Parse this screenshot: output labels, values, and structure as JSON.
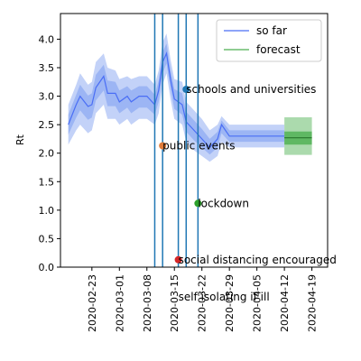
{
  "chart_data": {
    "type": "line",
    "title": "",
    "xlabel": "",
    "ylabel": "Rt",
    "ylim": [
      0,
      4.45
    ],
    "yticks": [
      "0.0",
      "0.5",
      "1.0",
      "1.5",
      "2.0",
      "2.5",
      "3.0",
      "3.5",
      "4.0"
    ],
    "xlim": [
      "2020-02-15",
      "2020-04-23"
    ],
    "xticks": [
      "2020-02-23",
      "2020-03-01",
      "2020-03-08",
      "2020-03-15",
      "2020-03-22",
      "2020-03-29",
      "2020-04-05",
      "2020-04-12",
      "2020-04-19"
    ],
    "grid": false,
    "legend_position": "top-right",
    "series": [
      {
        "name": "so far",
        "color": "#4a6ef5",
        "band_color": "#7b9cf0",
        "points": [
          {
            "x": "2020-02-17",
            "y": 2.5,
            "lo": 2.15,
            "hi": 2.85
          },
          {
            "x": "2020-02-19",
            "y": 2.85,
            "lo": 2.4,
            "hi": 3.2
          },
          {
            "x": "2020-02-20",
            "y": 3.0,
            "lo": 2.5,
            "hi": 3.4
          },
          {
            "x": "2020-02-22",
            "y": 2.82,
            "lo": 2.35,
            "hi": 3.2
          },
          {
            "x": "2020-02-23",
            "y": 2.85,
            "lo": 2.4,
            "hi": 3.25
          },
          {
            "x": "2020-02-24",
            "y": 3.15,
            "lo": 2.7,
            "hi": 3.6
          },
          {
            "x": "2020-02-26",
            "y": 3.35,
            "lo": 2.85,
            "hi": 3.75
          },
          {
            "x": "2020-02-27",
            "y": 3.05,
            "lo": 2.6,
            "hi": 3.5
          },
          {
            "x": "2020-02-29",
            "y": 3.05,
            "lo": 2.6,
            "hi": 3.45
          },
          {
            "x": "2020-03-01",
            "y": 2.9,
            "lo": 2.5,
            "hi": 3.3
          },
          {
            "x": "2020-03-03",
            "y": 3.0,
            "lo": 2.6,
            "hi": 3.35
          },
          {
            "x": "2020-03-04",
            "y": 2.9,
            "lo": 2.5,
            "hi": 3.3
          },
          {
            "x": "2020-03-06",
            "y": 3.0,
            "lo": 2.6,
            "hi": 3.35
          },
          {
            "x": "2020-03-08",
            "y": 3.0,
            "lo": 2.6,
            "hi": 3.35
          },
          {
            "x": "2020-03-10",
            "y": 2.85,
            "lo": 2.5,
            "hi": 3.2
          },
          {
            "x": "2020-03-11",
            "y": 3.1,
            "lo": 2.7,
            "hi": 3.45
          },
          {
            "x": "2020-03-12",
            "y": 3.6,
            "lo": 3.2,
            "hi": 3.95
          },
          {
            "x": "2020-03-13",
            "y": 3.75,
            "lo": 3.4,
            "hi": 4.1
          },
          {
            "x": "2020-03-14",
            "y": 3.3,
            "lo": 2.95,
            "hi": 3.65
          },
          {
            "x": "2020-03-15",
            "y": 2.95,
            "lo": 2.6,
            "hi": 3.3
          },
          {
            "x": "2020-03-17",
            "y": 2.85,
            "lo": 2.5,
            "hi": 3.25
          },
          {
            "x": "2020-03-18",
            "y": 2.55,
            "lo": 2.2,
            "hi": 2.9
          },
          {
            "x": "2020-03-20",
            "y": 2.4,
            "lo": 2.05,
            "hi": 2.75
          },
          {
            "x": "2020-03-22",
            "y": 2.25,
            "lo": 1.95,
            "hi": 2.6
          },
          {
            "x": "2020-03-24",
            "y": 2.1,
            "lo": 1.85,
            "hi": 2.4
          },
          {
            "x": "2020-03-26",
            "y": 2.25,
            "lo": 1.95,
            "hi": 2.5
          },
          {
            "x": "2020-03-27",
            "y": 2.5,
            "lo": 2.2,
            "hi": 2.65
          },
          {
            "x": "2020-03-29",
            "y": 2.3,
            "lo": 2.1,
            "hi": 2.5
          },
          {
            "x": "2020-04-03",
            "y": 2.3,
            "lo": 2.1,
            "hi": 2.5
          },
          {
            "x": "2020-04-08",
            "y": 2.3,
            "lo": 2.1,
            "hi": 2.5
          },
          {
            "x": "2020-04-12",
            "y": 2.3,
            "lo": 2.1,
            "hi": 2.5
          }
        ]
      },
      {
        "name": "forecast",
        "color": "#4caf50",
        "band_color": "#66bb6a",
        "start": "2020-04-12",
        "end": "2020-04-19",
        "y": 2.27,
        "inner": [
          2.15,
          2.38
        ],
        "outer": [
          1.97,
          2.63
        ]
      }
    ],
    "vertical_lines": [
      "2020-03-10",
      "2020-03-12",
      "2020-03-16",
      "2020-03-18",
      "2020-03-21"
    ],
    "vline_color": "#1f77b4",
    "events": [
      {
        "label": "public events",
        "x": "2020-03-12",
        "y": 2.13,
        "color": "#e07b39"
      },
      {
        "label": "schools and universities",
        "x": "2020-03-18",
        "y": 3.12,
        "color": "#1f77b4"
      },
      {
        "label": "lockdown",
        "x": "2020-03-21",
        "y": 1.12,
        "color": "#2ca02c"
      },
      {
        "label": "social distancing encouraged",
        "x": "2020-03-16",
        "y": 0.13,
        "color": "#d62728"
      },
      {
        "label": "self isolating if ill",
        "x": "2020-03-16",
        "y": -0.52,
        "color": "#9467bd"
      }
    ]
  }
}
